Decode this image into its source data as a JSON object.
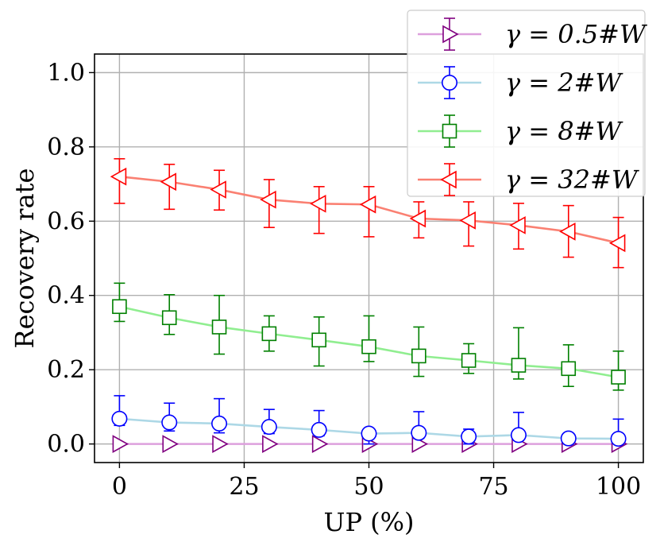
{
  "chart_data": {
    "type": "line",
    "title": "",
    "xlabel": "UP (%)",
    "ylabel": "Recovery rate",
    "xlim": [
      -5,
      105
    ],
    "ylim": [
      -0.05,
      1.05
    ],
    "grid": true,
    "legend_position": "top-right",
    "x": [
      0,
      10,
      20,
      30,
      40,
      50,
      60,
      70,
      80,
      90,
      100
    ],
    "xticks": [
      0,
      25,
      50,
      75,
      100
    ],
    "xtick_labels": [
      "0",
      "25",
      "50",
      "75",
      "100"
    ],
    "yticks": [
      0.0,
      0.2,
      0.4,
      0.6,
      0.8,
      1.0
    ],
    "ytick_labels": [
      "0.0",
      "0.2",
      "0.4",
      "0.6",
      "0.8",
      "1.0"
    ],
    "series": [
      {
        "name": "γ = 0.5#W",
        "marker": "triangle-right",
        "line_color": "#dda0dd",
        "marker_color": "#800080",
        "values": [
          0.0,
          0.0,
          0.0,
          0.0,
          0.0,
          0.0,
          0.0,
          0.0,
          0.0,
          0.0,
          0.0
        ],
        "err_low": [
          0.0,
          0.0,
          0.0,
          0.0,
          0.0,
          0.0,
          0.0,
          0.0,
          0.0,
          0.0,
          0.0
        ],
        "err_high": [
          0.0,
          0.0,
          0.0,
          0.0,
          0.0,
          0.0,
          0.0,
          0.0,
          0.0,
          0.0,
          0.0
        ]
      },
      {
        "name": "γ = 2#W",
        "marker": "circle",
        "line_color": "#add8e6",
        "marker_color": "#0000ff",
        "values": [
          0.068,
          0.058,
          0.055,
          0.046,
          0.038,
          0.028,
          0.03,
          0.02,
          0.024,
          0.015,
          0.014
        ],
        "err_low": [
          0.05,
          0.035,
          0.03,
          0.028,
          0.022,
          0.0,
          0.015,
          0.0,
          0.01,
          0.0,
          0.0
        ],
        "err_high": [
          0.13,
          0.11,
          0.122,
          0.093,
          0.09,
          0.03,
          0.087,
          0.04,
          0.085,
          0.018,
          0.067
        ]
      },
      {
        "name": "γ = 8#W",
        "marker": "square",
        "line_color": "#90ee90",
        "marker_color": "#008000",
        "values": [
          0.37,
          0.34,
          0.315,
          0.297,
          0.28,
          0.262,
          0.237,
          0.225,
          0.212,
          0.203,
          0.18
        ],
        "err_low": [
          0.33,
          0.295,
          0.242,
          0.25,
          0.21,
          0.222,
          0.182,
          0.19,
          0.175,
          0.155,
          0.145
        ],
        "err_high": [
          0.433,
          0.402,
          0.4,
          0.345,
          0.342,
          0.345,
          0.315,
          0.27,
          0.313,
          0.267,
          0.25
        ]
      },
      {
        "name": "γ = 32#W",
        "marker": "triangle-left",
        "line_color": "#fa8072",
        "marker_color": "#ff0000",
        "values": [
          0.72,
          0.706,
          0.685,
          0.658,
          0.647,
          0.645,
          0.607,
          0.602,
          0.589,
          0.572,
          0.541
        ],
        "err_low": [
          0.648,
          0.632,
          0.63,
          0.583,
          0.567,
          0.558,
          0.555,
          0.533,
          0.525,
          0.503,
          0.475
        ],
        "err_high": [
          0.768,
          0.753,
          0.737,
          0.712,
          0.693,
          0.693,
          0.652,
          0.652,
          0.648,
          0.642,
          0.61
        ]
      }
    ]
  }
}
